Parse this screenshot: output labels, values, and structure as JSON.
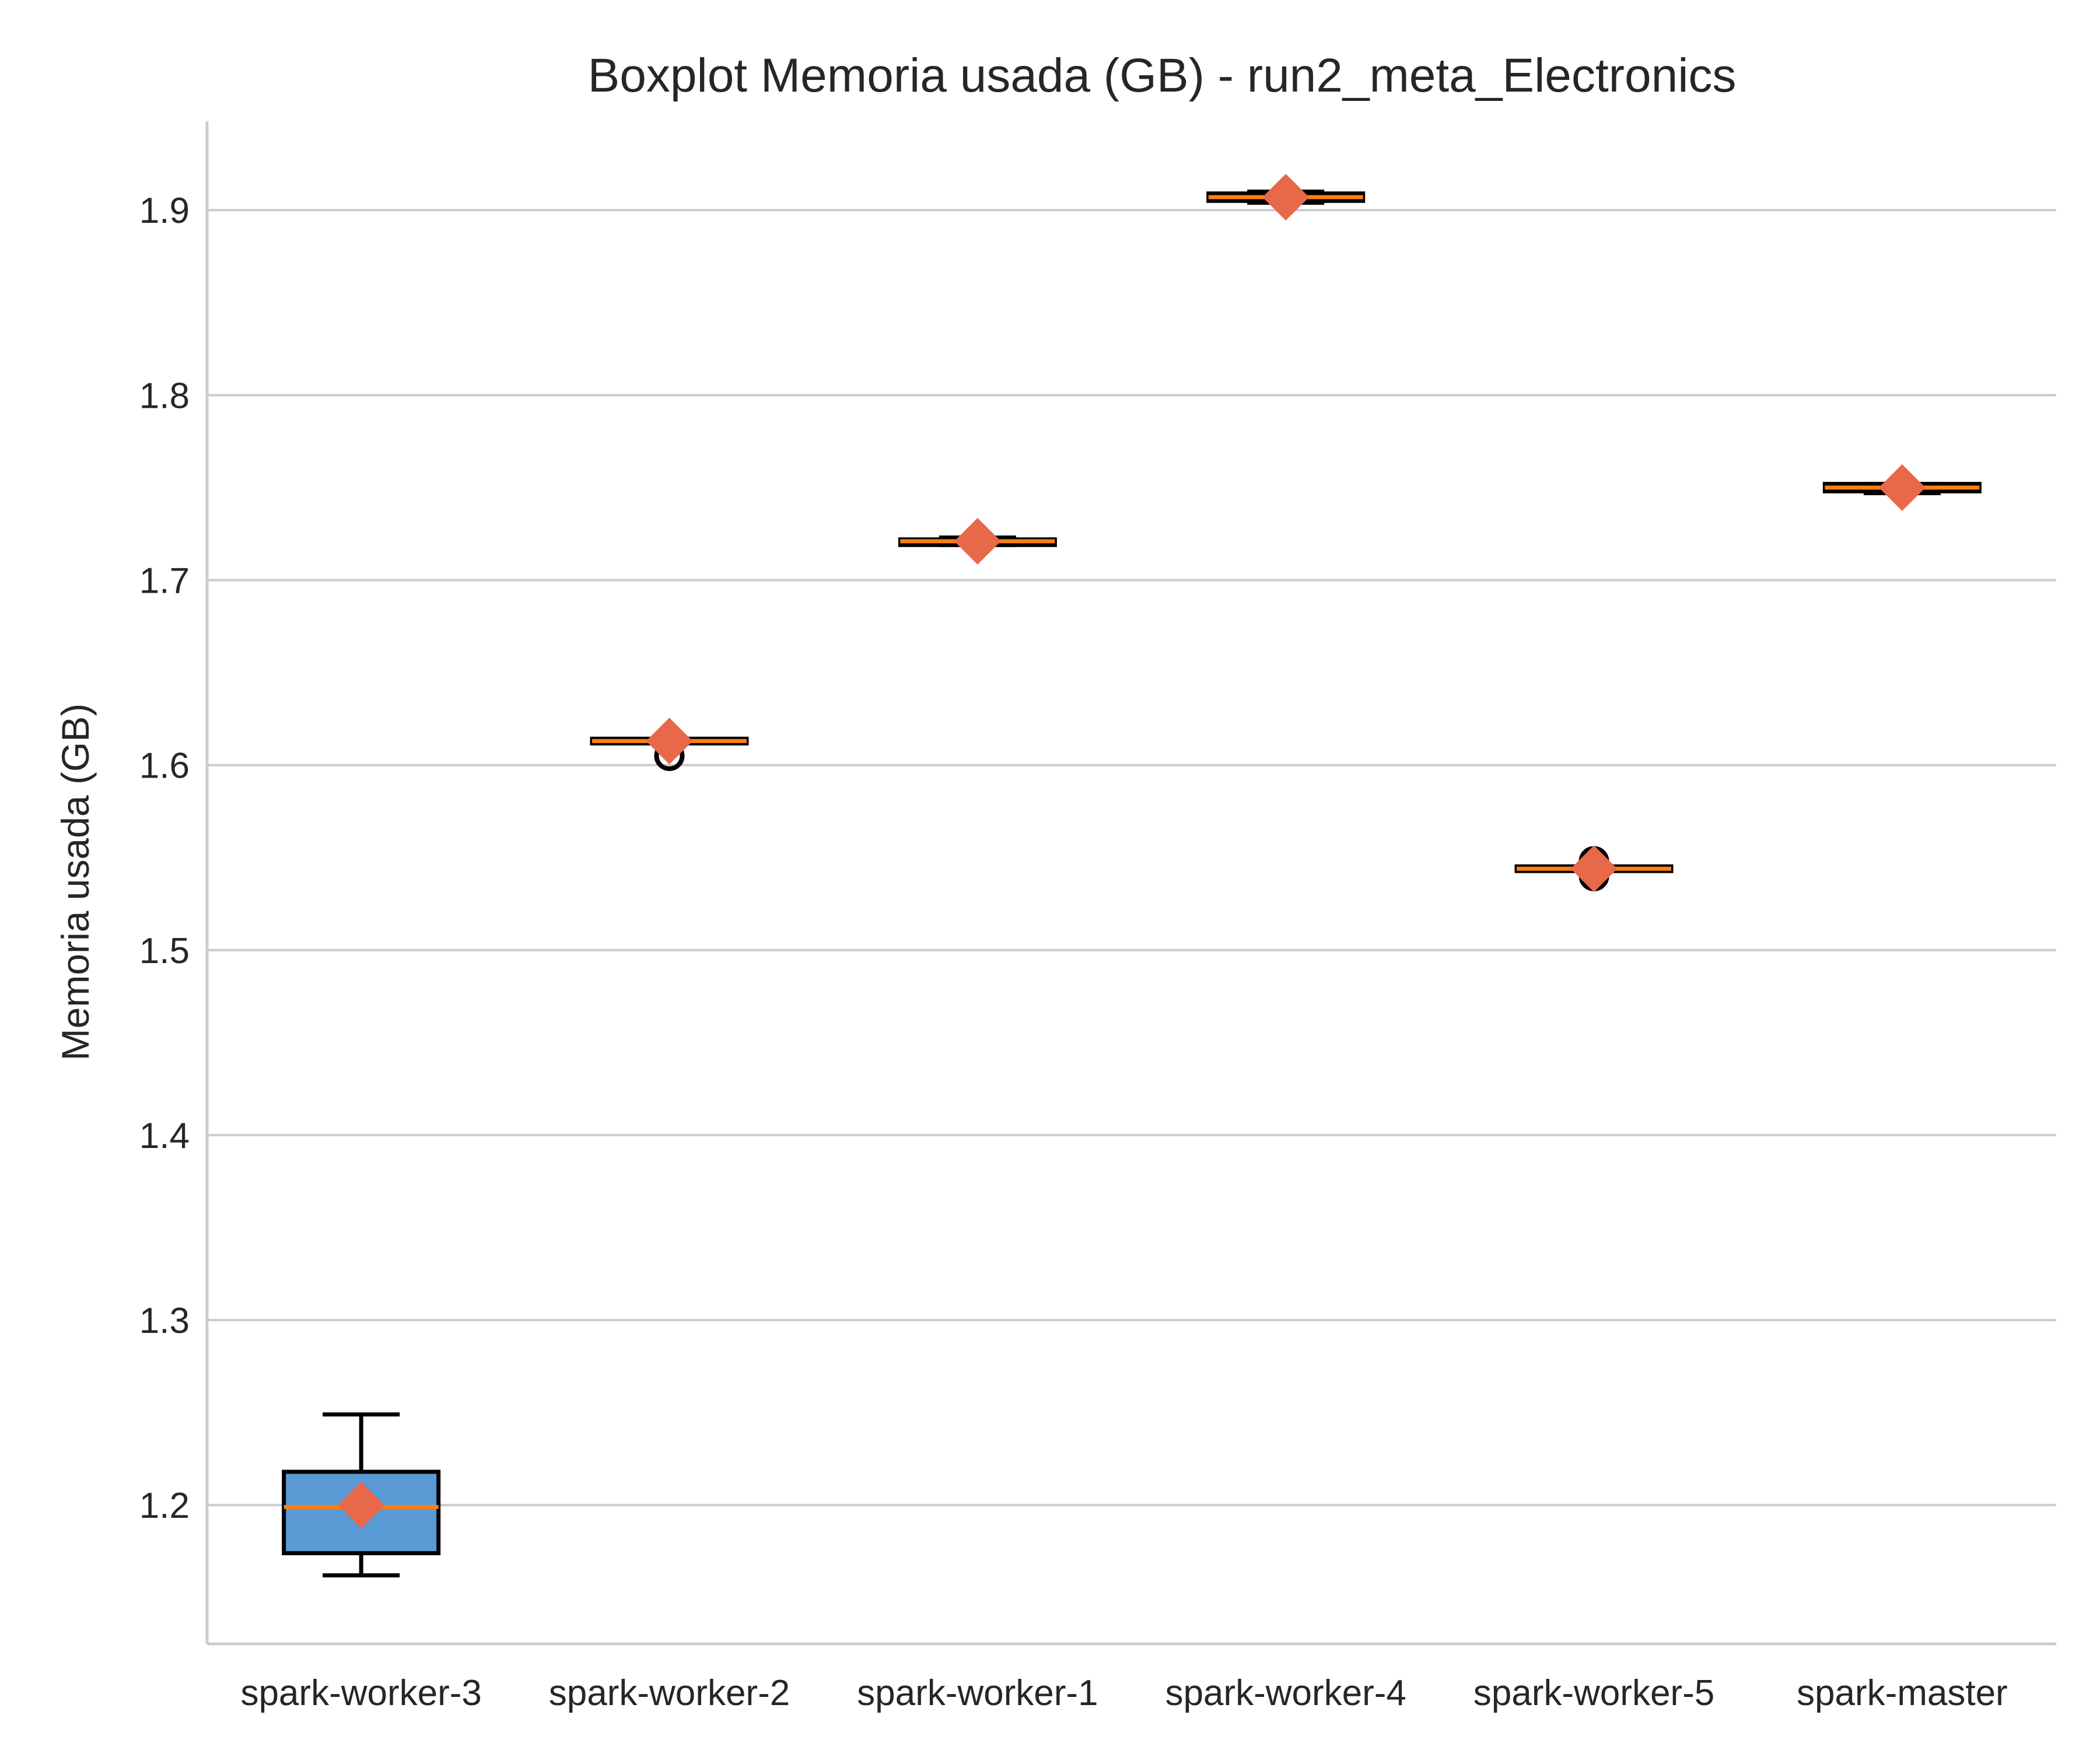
{
  "chart_data": {
    "type": "boxplot",
    "title": "Boxplot Memoria usada (GB) - run2_meta_Electronics",
    "xlabel": "",
    "ylabel": "Memoria usada (GB)",
    "ylim": [
      1.125,
      1.948
    ],
    "yticks": [
      1.2,
      1.3,
      1.4,
      1.5,
      1.6,
      1.7,
      1.8,
      1.9
    ],
    "grid": "horizontal",
    "categories": [
      "spark-worker-3",
      "spark-worker-2",
      "spark-worker-1",
      "spark-worker-4",
      "spark-worker-5",
      "spark-master"
    ],
    "series": [
      {
        "category": "spark-worker-3",
        "whisker_low": 1.162,
        "q1": 1.174,
        "median": 1.199,
        "q3": 1.218,
        "whisker_high": 1.249,
        "mean": 1.2,
        "outliers": [],
        "box_color": "#5b9bd5"
      },
      {
        "category": "spark-worker-2",
        "whisker_low": 1.612,
        "q1": 1.612,
        "median": 1.613,
        "q3": 1.614,
        "whisker_high": 1.614,
        "mean": 1.613,
        "outliers": [
          1.605
        ],
        "box_color": "#f28e2b"
      },
      {
        "category": "spark-worker-1",
        "whisker_low": 1.719,
        "q1": 1.719,
        "median": 1.721,
        "q3": 1.722,
        "whisker_high": 1.723,
        "mean": 1.721,
        "outliers": [],
        "box_color": "#f28e2b"
      },
      {
        "category": "spark-worker-4",
        "whisker_low": 1.904,
        "q1": 1.905,
        "median": 1.907,
        "q3": 1.909,
        "whisker_high": 1.91,
        "mean": 1.907,
        "outliers": [],
        "box_color": "#f28e2b"
      },
      {
        "category": "spark-worker-5",
        "whisker_low": 1.543,
        "q1": 1.543,
        "median": 1.544,
        "q3": 1.545,
        "whisker_high": 1.545,
        "mean": 1.544,
        "outliers": [
          1.54,
          1.548
        ],
        "box_color": "#f28e2b"
      },
      {
        "category": "spark-master",
        "whisker_low": 1.747,
        "q1": 1.748,
        "median": 1.75,
        "q3": 1.752,
        "whisker_high": 1.752,
        "mean": 1.75,
        "outliers": [],
        "box_color": "#f28e2b"
      }
    ],
    "colors": {
      "median_line": "#ff7f0e",
      "mean_marker": "#e8684a",
      "box_edge": "#000000",
      "grid": "#cccccc",
      "axis": "#cccccc"
    }
  }
}
